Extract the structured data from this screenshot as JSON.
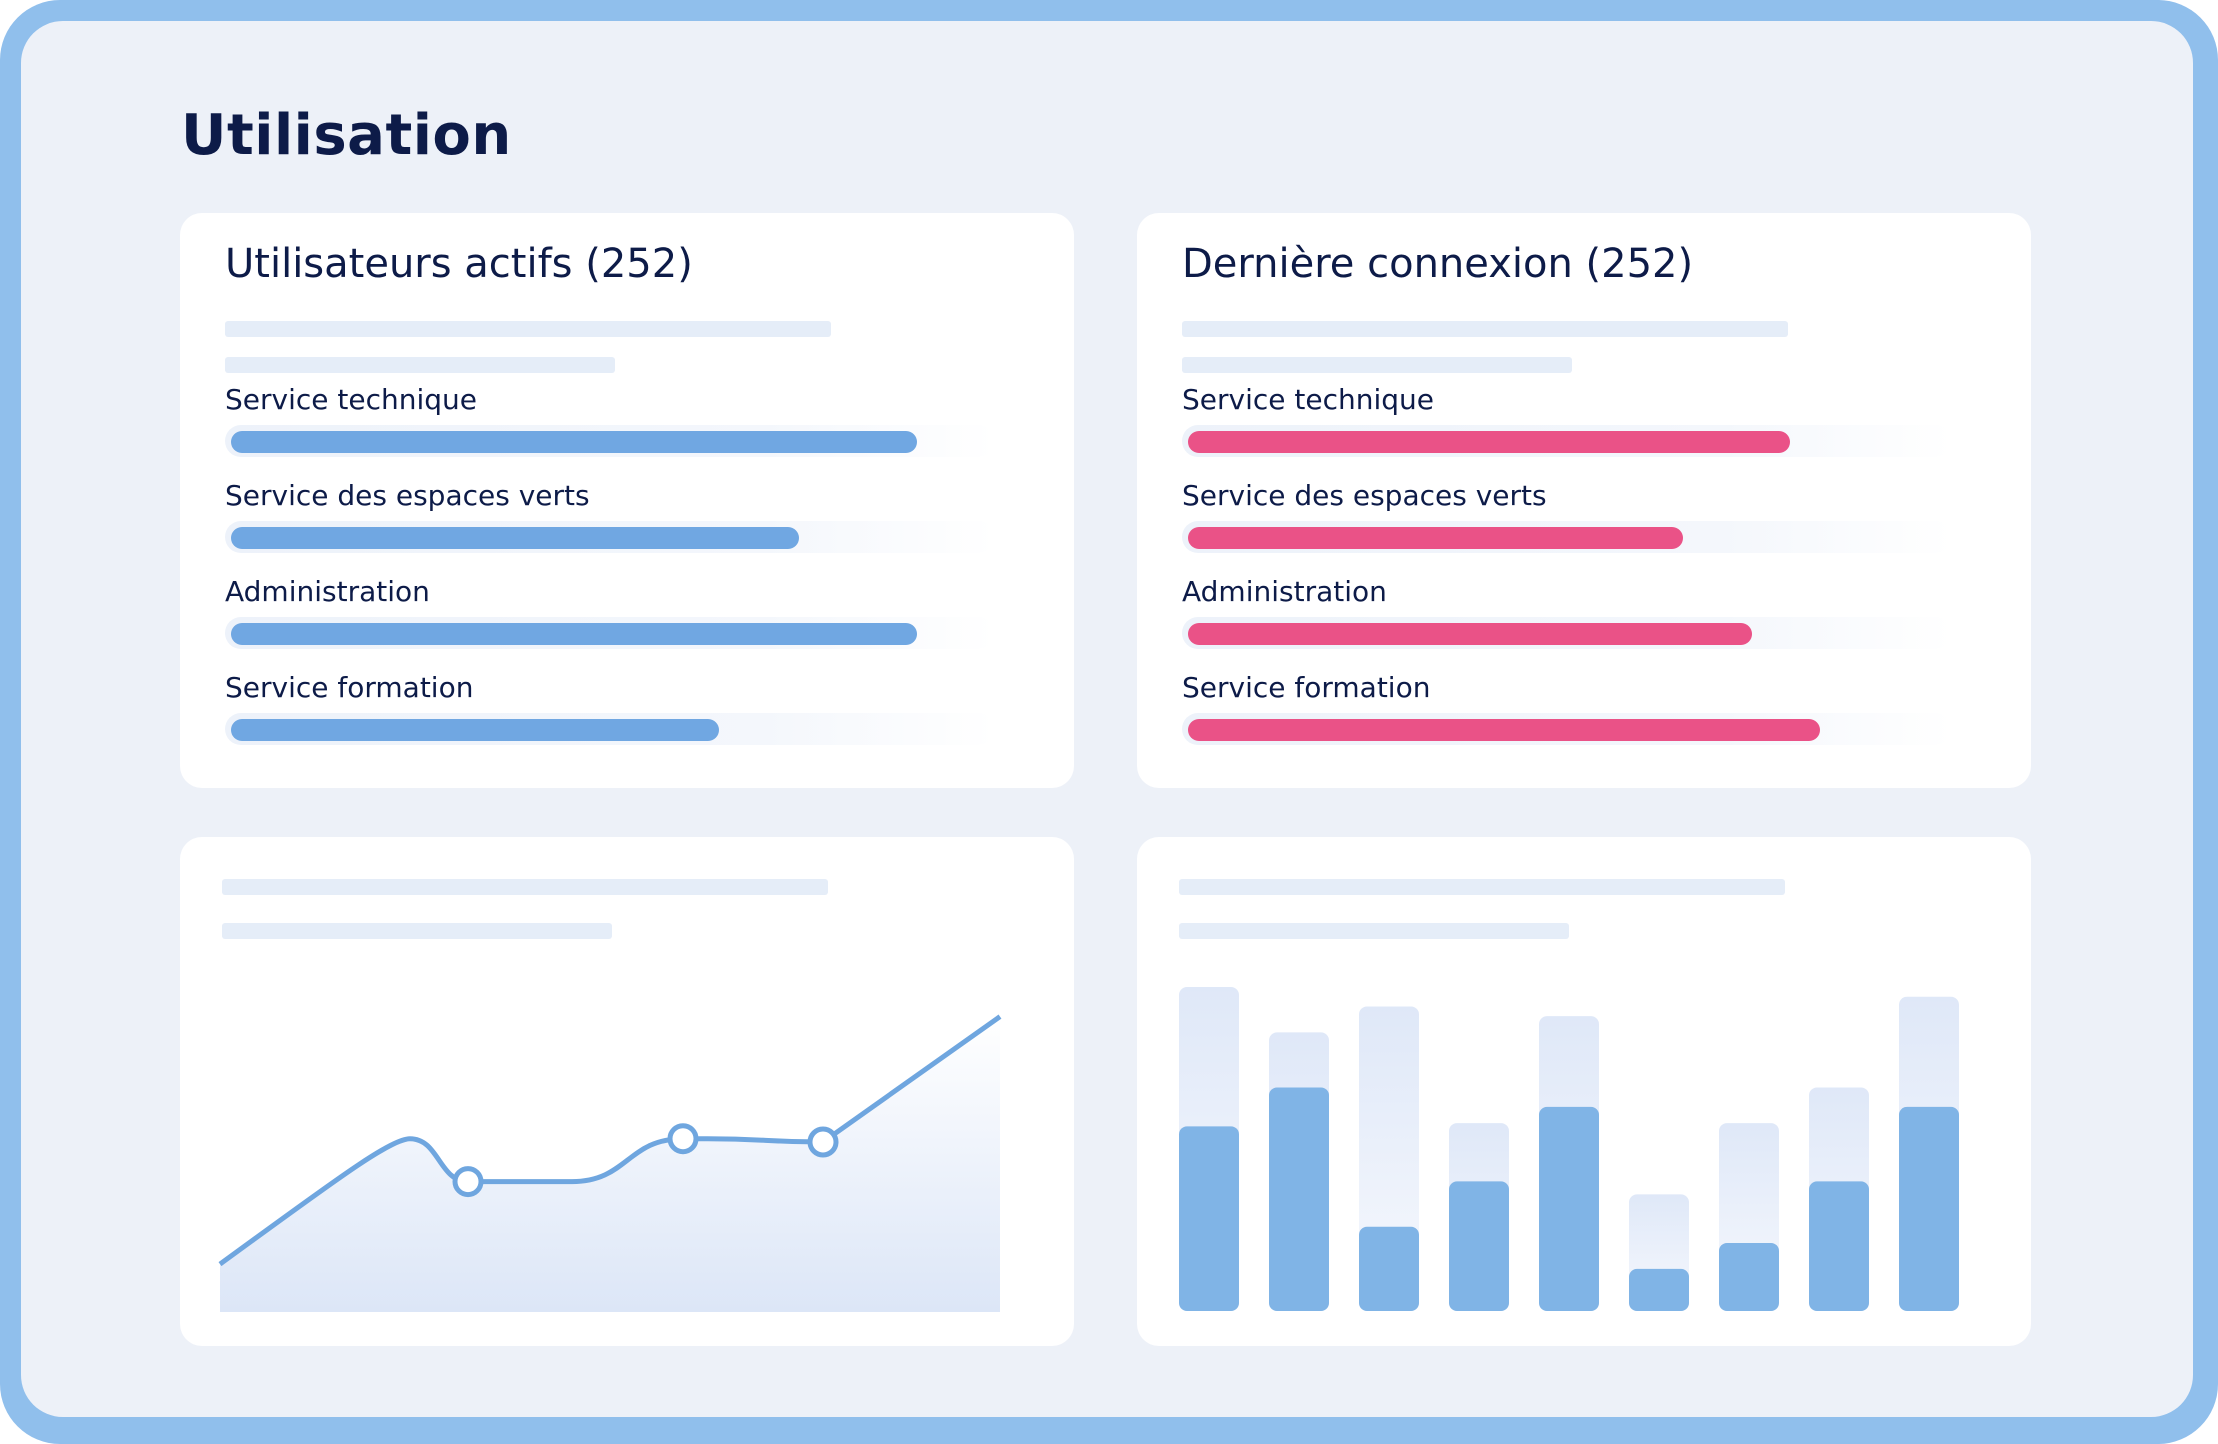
{
  "page": {
    "title": "Utilisation"
  },
  "colors": {
    "frame": "#90bfec",
    "background": "#edf1f8",
    "title": "#0d1b48",
    "bar_blue": "#70a7e2",
    "bar_pink": "#ea5287",
    "placeholder": "#e5edf8",
    "column": "#80b4e6",
    "column_track": "#e4ebf8",
    "line": "#6fa6df"
  },
  "cards": [
    {
      "title": "Utilisateurs actifs (252)",
      "color": "#70a7e2",
      "rows": [
        {
          "label": "Service technique",
          "level": 0.9
        },
        {
          "label": "Service des espaces verts",
          "level": 0.745
        },
        {
          "label": "Administration",
          "level": 0.9
        },
        {
          "label": "Service formation",
          "level": 0.64
        }
      ]
    },
    {
      "title": "Dernière connexion (252)",
      "color": "#ea5287",
      "rows": [
        {
          "label": "Service technique",
          "level": 0.79
        },
        {
          "label": "Service des espaces verts",
          "level": 0.65
        },
        {
          "label": "Administration",
          "level": 0.74
        },
        {
          "label": "Service formation",
          "level": 0.83
        }
      ]
    }
  ],
  "chart_data": [
    {
      "type": "area",
      "x": [
        0,
        1,
        2,
        3,
        4,
        5,
        6,
        7
      ],
      "values": [
        0.13,
        0.51,
        0.38,
        0.38,
        0.51,
        0.51,
        0.5,
        0.88
      ],
      "highlighted_points": [
        2,
        4,
        6
      ]
    },
    {
      "type": "bar",
      "values": [
        0.57,
        0.69,
        0.26,
        0.4,
        0.63,
        0.13,
        0.21,
        0.4,
        0.63
      ],
      "background_values": [
        1.0,
        0.86,
        0.94,
        0.58,
        0.91,
        0.36,
        0.58,
        0.69,
        0.97
      ]
    }
  ]
}
